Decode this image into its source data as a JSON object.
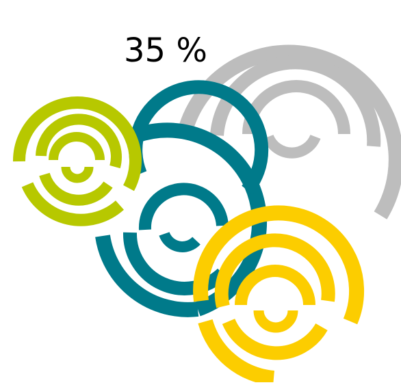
{
  "label": {
    "text": "35 %"
  },
  "colors": {
    "gray": "#bdbdbd",
    "teal": "#007a8a",
    "lime": "#b7c800",
    "yellow": "#fccd00",
    "background": "#ffffff",
    "text": "#000000"
  },
  "graphic": {
    "motif": "concentric-arc-spirals"
  }
}
